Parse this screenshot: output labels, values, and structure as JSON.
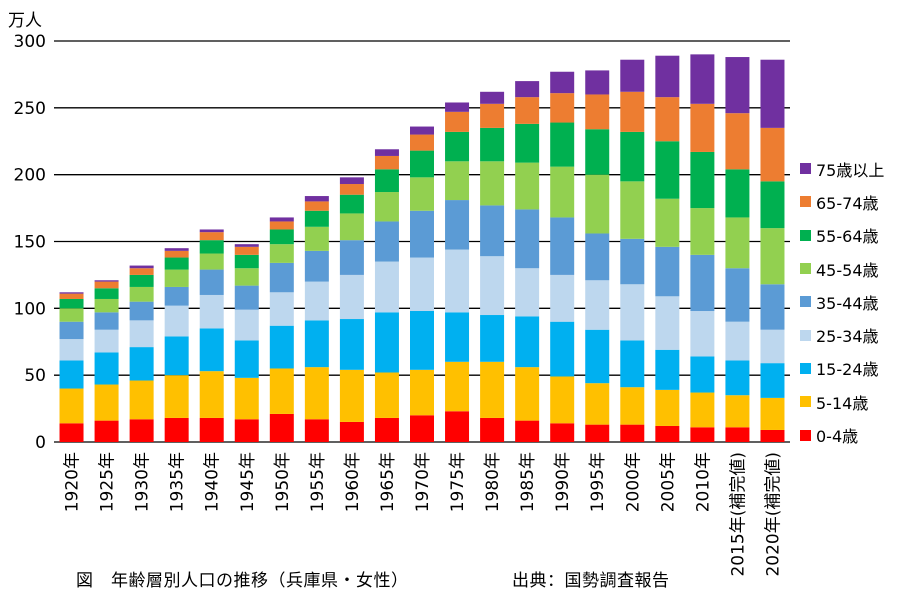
{
  "unit_label": "万人",
  "caption": "図　年齢層別人口の推移（兵庫県・女性）",
  "source": "出典：国勢調査報告",
  "colors": {
    "0-4歳": "#ff0000",
    "5-14歳": "#ffc000",
    "15-24歳": "#00b0f0",
    "25-34歳": "#bdd7ee",
    "35-44歳": "#5b9bd5",
    "45-54歳": "#92d050",
    "55-64歳": "#00b050",
    "65-74歳": "#ed7d31",
    "75歳以上": "#7030a0"
  },
  "legend": [
    "75歳以上",
    "65-74歳",
    "55-64歳",
    "45-54歳",
    "35-44歳",
    "25-34歳",
    "15-24歳",
    "5-14歳",
    "0-4歳"
  ],
  "chart_data": {
    "type": "bar",
    "stacked": true,
    "title": "",
    "xlabel": "",
    "ylabel": "万人",
    "ylim": [
      0,
      300
    ],
    "yticks": [
      0,
      50,
      100,
      150,
      200,
      250,
      300
    ],
    "grid": true,
    "legend_position": "right",
    "categories": [
      "1920年",
      "1925年",
      "1930年",
      "1935年",
      "1940年",
      "1945年",
      "1950年",
      "1955年",
      "1960年",
      "1965年",
      "1970年",
      "1975年",
      "1980年",
      "1985年",
      "1990年",
      "1995年",
      "2000年",
      "2005年",
      "2010年",
      "2015年(補完値)",
      "2020年(補完値)"
    ],
    "series": [
      {
        "name": "0-4歳",
        "values": [
          14,
          16,
          17,
          18,
          18,
          17,
          21,
          17,
          15,
          18,
          20,
          23,
          18,
          16,
          14,
          13,
          13,
          12,
          11,
          11,
          9
        ]
      },
      {
        "name": "5-14歳",
        "values": [
          26,
          27,
          29,
          32,
          35,
          31,
          34,
          39,
          39,
          34,
          34,
          37,
          42,
          40,
          35,
          31,
          28,
          27,
          26,
          24,
          24
        ]
      },
      {
        "name": "15-24歳",
        "values": [
          21,
          24,
          25,
          29,
          32,
          28,
          32,
          35,
          38,
          45,
          44,
          37,
          35,
          38,
          41,
          40,
          35,
          30,
          27,
          26,
          26
        ]
      },
      {
        "name": "25-34歳",
        "values": [
          16,
          17,
          20,
          23,
          25,
          23,
          25,
          29,
          33,
          38,
          40,
          47,
          44,
          36,
          35,
          37,
          42,
          40,
          34,
          29,
          25
        ]
      },
      {
        "name": "35-44歳",
        "values": [
          13,
          13,
          14,
          14,
          19,
          18,
          22,
          23,
          26,
          30,
          35,
          37,
          38,
          44,
          43,
          35,
          34,
          37,
          42,
          40,
          34
        ]
      },
      {
        "name": "45-54歳",
        "values": [
          10,
          10,
          11,
          13,
          12,
          13,
          14,
          18,
          20,
          22,
          25,
          29,
          33,
          35,
          38,
          44,
          43,
          36,
          35,
          38,
          42
        ]
      },
      {
        "name": "55-64歳",
        "values": [
          7,
          8,
          9,
          9,
          10,
          10,
          11,
          12,
          14,
          17,
          20,
          22,
          25,
          29,
          33,
          34,
          37,
          43,
          42,
          36,
          35
        ]
      },
      {
        "name": "65-74歳",
        "values": [
          4,
          5,
          5,
          5,
          6,
          6,
          6,
          7,
          8,
          10,
          12,
          15,
          18,
          20,
          22,
          26,
          30,
          33,
          36,
          42,
          40
        ]
      },
      {
        "name": "75歳以上",
        "values": [
          1,
          1,
          2,
          2,
          2,
          2,
          3,
          4,
          5,
          5,
          6,
          7,
          9,
          12,
          16,
          18,
          24,
          31,
          37,
          42,
          51
        ]
      }
    ]
  }
}
